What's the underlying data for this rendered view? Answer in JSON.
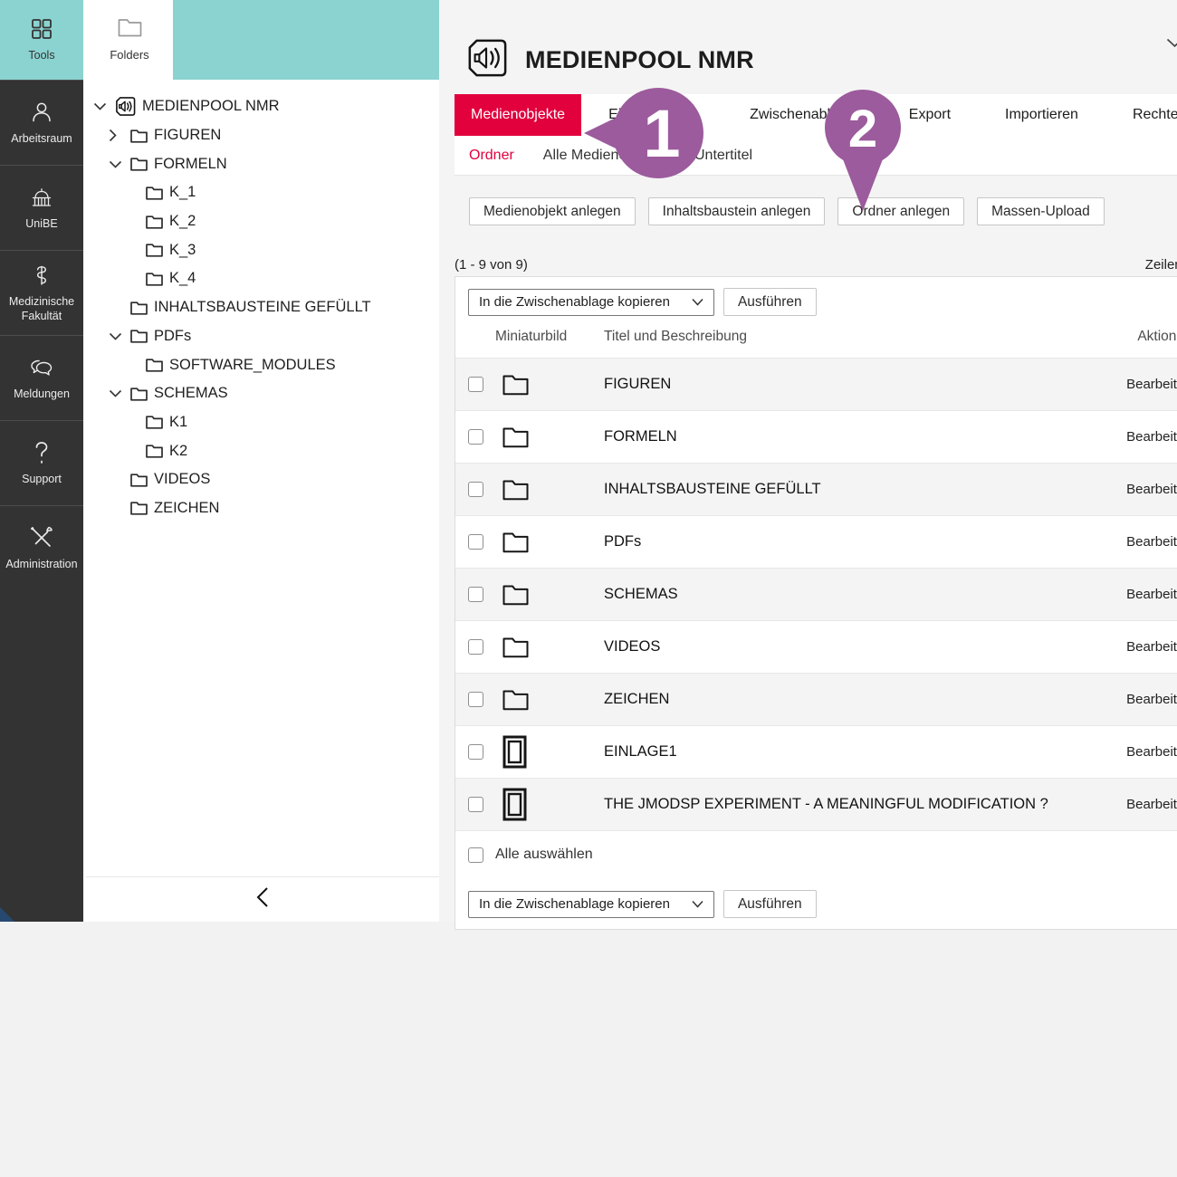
{
  "colors": {
    "accent_red": "#e2003d",
    "teal": "#8ad3d0",
    "rail_bg": "#333333",
    "marker_purple": "#9c5b9d",
    "row_alt_bg": "#f4f4f4"
  },
  "rail": {
    "tools": {
      "label": "Tools",
      "icon": "grid-icon"
    },
    "items": [
      {
        "label": "Arbeitsraum",
        "icon": "person-icon"
      },
      {
        "label": "UniBE",
        "icon": "university-icon"
      },
      {
        "label": "Medizinische Fakultät",
        "icon": "caduceus-icon"
      },
      {
        "label": "Meldungen",
        "icon": "chat-icon"
      },
      {
        "label": "Support",
        "icon": "question-icon"
      },
      {
        "label": "Administration",
        "icon": "tools-crossed-icon"
      }
    ]
  },
  "tree_panel": {
    "folders_tab": {
      "label": "Folders",
      "icon": "folder-icon"
    },
    "collapse_icon": "chevron-left-icon",
    "nodes": [
      {
        "label": "MEDIENPOOL NMR",
        "level": 0,
        "chevron": "down",
        "icon": "mediapool"
      },
      {
        "label": "FIGUREN",
        "level": 1,
        "chevron": "right",
        "icon": "folder"
      },
      {
        "label": "FORMELN",
        "level": 1,
        "chevron": "down",
        "icon": "folder"
      },
      {
        "label": "K_1",
        "level": 2,
        "chevron": "none",
        "icon": "folder"
      },
      {
        "label": "K_2",
        "level": 2,
        "chevron": "none",
        "icon": "folder"
      },
      {
        "label": "K_3",
        "level": 2,
        "chevron": "none",
        "icon": "folder"
      },
      {
        "label": "K_4",
        "level": 2,
        "chevron": "none",
        "icon": "folder"
      },
      {
        "label": "INHALTSBAUSTEINE GEFÜLLT",
        "level": 1,
        "chevron": "none",
        "icon": "folder"
      },
      {
        "label": "PDFs",
        "level": 1,
        "chevron": "down",
        "icon": "folder"
      },
      {
        "label": "SOFTWARE_MODULES",
        "level": 2,
        "chevron": "none",
        "icon": "folder"
      },
      {
        "label": "SCHEMAS",
        "level": 1,
        "chevron": "down",
        "icon": "folder"
      },
      {
        "label": "K1",
        "level": 2,
        "chevron": "none",
        "icon": "folder"
      },
      {
        "label": "K2",
        "level": 2,
        "chevron": "none",
        "icon": "folder"
      },
      {
        "label": "VIDEOS",
        "level": 1,
        "chevron": "none",
        "icon": "folder"
      },
      {
        "label": "ZEICHEN",
        "level": 1,
        "chevron": "none",
        "icon": "folder"
      }
    ]
  },
  "main": {
    "title": "MEDIENPOOL NMR",
    "title_icon": "mediapool-icon",
    "header_collapse_icon": "chevron-down-icon",
    "tabs": [
      {
        "label": "Medienobjekte",
        "active": true
      },
      {
        "label": "Einstellungen",
        "active": false
      },
      {
        "label": "Zwischenablage",
        "active": false
      },
      {
        "label": "Export",
        "active": false
      },
      {
        "label": "Importieren",
        "active": false
      },
      {
        "label": "Rechte",
        "active": false
      }
    ],
    "subtabs": [
      {
        "label": "Ordner",
        "active": true
      },
      {
        "label": "Alle Medienobjekte",
        "active": false
      },
      {
        "label": "Untertitel",
        "active": false
      }
    ],
    "action_buttons": [
      "Medienobjekt anlegen",
      "Inhaltsbaustein anlegen",
      "Ordner anlegen",
      "Massen-Upload"
    ],
    "pagination": "(1 - 9 von 9)",
    "rows_control": "Zeilen",
    "bulk_select_value": "In die Zwischenablage kopieren",
    "execute_button": "Ausführen",
    "table": {
      "headers": {
        "thumbnail": "Miniaturbild",
        "title": "Titel und Beschreibung",
        "actions": "Aktionen"
      },
      "rows": [
        {
          "title": "FIGUREN",
          "icon": "folder",
          "action": "Bearbeiten"
        },
        {
          "title": "FORMELN",
          "icon": "folder",
          "action": "Bearbeiten"
        },
        {
          "title": "INHALTSBAUSTEINE GEFÜLLT",
          "icon": "folder",
          "action": "Bearbeiten"
        },
        {
          "title": "PDFs",
          "icon": "folder",
          "action": "Bearbeiten"
        },
        {
          "title": "SCHEMAS",
          "icon": "folder",
          "action": "Bearbeiten"
        },
        {
          "title": "VIDEOS",
          "icon": "folder",
          "action": "Bearbeiten"
        },
        {
          "title": "ZEICHEN",
          "icon": "folder",
          "action": "Bearbeiten"
        },
        {
          "title": "EINLAGE1",
          "icon": "page",
          "action": "Bearbeiten"
        },
        {
          "title": "THE JMODSP EXPERIMENT - A MEANINGFUL MODIFICATION ?",
          "icon": "page",
          "action": "Bearbeiten"
        }
      ],
      "select_all": "Alle auswählen"
    }
  },
  "markers": [
    {
      "label": "1"
    },
    {
      "label": "2"
    }
  ]
}
